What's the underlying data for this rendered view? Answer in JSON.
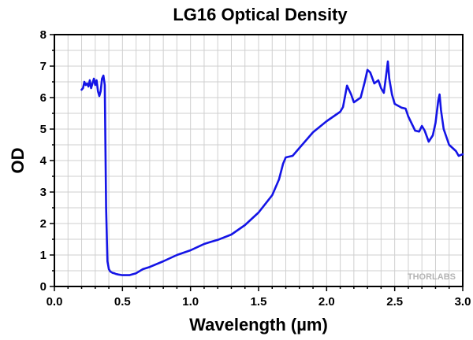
{
  "chart_data": {
    "type": "line",
    "title": "LG16 Optical Density",
    "xlabel": "Wavelength (µm)",
    "ylabel": "OD",
    "xlim": [
      0.0,
      3.0
    ],
    "ylim": [
      0,
      8
    ],
    "xticks": [
      "0.0",
      "0.5",
      "1.0",
      "1.5",
      "2.0",
      "2.5",
      "3.0"
    ],
    "yticks": [
      "0",
      "1",
      "2",
      "3",
      "4",
      "5",
      "6",
      "7",
      "8"
    ],
    "grid": true,
    "watermark": "THORLABS",
    "series": [
      {
        "name": "LG16",
        "color": "#1414e6",
        "x": [
          0.2,
          0.21,
          0.22,
          0.23,
          0.24,
          0.25,
          0.26,
          0.27,
          0.28,
          0.29,
          0.3,
          0.31,
          0.32,
          0.33,
          0.34,
          0.35,
          0.36,
          0.37,
          0.38,
          0.39,
          0.4,
          0.41,
          0.42,
          0.43,
          0.44,
          0.45,
          0.47,
          0.5,
          0.55,
          0.6,
          0.65,
          0.7,
          0.8,
          0.9,
          1.0,
          1.1,
          1.15,
          1.2,
          1.3,
          1.4,
          1.5,
          1.6,
          1.65,
          1.68,
          1.7,
          1.75,
          1.8,
          1.9,
          2.0,
          2.1,
          2.12,
          2.15,
          2.18,
          2.2,
          2.25,
          2.28,
          2.3,
          2.32,
          2.35,
          2.38,
          2.4,
          2.42,
          2.44,
          2.45,
          2.46,
          2.48,
          2.5,
          2.55,
          2.58,
          2.6,
          2.65,
          2.68,
          2.7,
          2.72,
          2.75,
          2.78,
          2.8,
          2.82,
          2.83,
          2.84,
          2.86,
          2.9,
          2.95,
          2.97,
          3.0
        ],
        "y": [
          6.25,
          6.3,
          6.5,
          6.4,
          6.45,
          6.35,
          6.55,
          6.3,
          6.45,
          6.6,
          6.4,
          6.55,
          6.2,
          6.05,
          6.2,
          6.6,
          6.7,
          6.4,
          2.5,
          0.8,
          0.55,
          0.48,
          0.45,
          0.43,
          0.42,
          0.4,
          0.38,
          0.36,
          0.36,
          0.42,
          0.55,
          0.62,
          0.8,
          1.0,
          1.15,
          1.35,
          1.42,
          1.48,
          1.65,
          1.95,
          2.35,
          2.9,
          3.4,
          3.9,
          4.1,
          4.15,
          4.4,
          4.9,
          5.25,
          5.55,
          5.7,
          6.38,
          6.1,
          5.85,
          6.0,
          6.5,
          6.88,
          6.8,
          6.45,
          6.55,
          6.3,
          6.15,
          6.8,
          7.15,
          6.6,
          6.1,
          5.8,
          5.68,
          5.65,
          5.4,
          4.95,
          4.92,
          5.1,
          4.95,
          4.6,
          4.8,
          5.2,
          5.9,
          6.1,
          5.6,
          5.0,
          4.5,
          4.3,
          4.15,
          4.2
        ]
      }
    ]
  }
}
